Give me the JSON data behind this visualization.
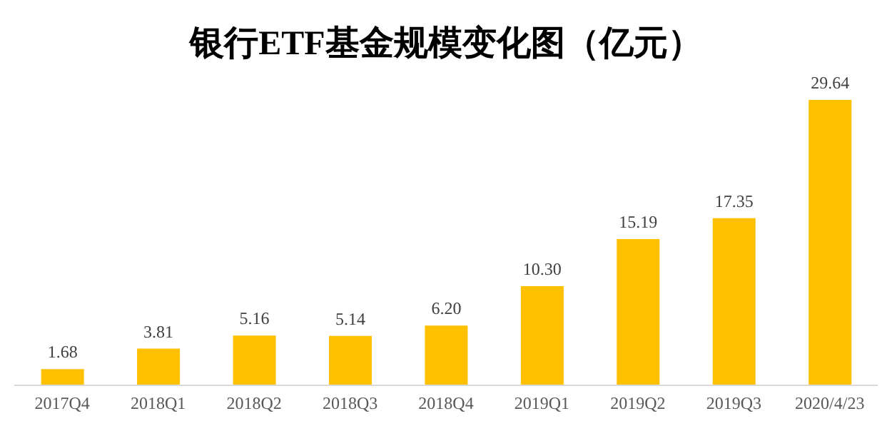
{
  "chart_data": {
    "type": "bar",
    "title": "银行ETF基金规模变化图（亿元）",
    "categories": [
      "2017Q4",
      "2018Q1",
      "2018Q2",
      "2018Q3",
      "2018Q4",
      "2019Q1",
      "2019Q2",
      "2019Q3",
      "2020/4/23"
    ],
    "values": [
      1.68,
      3.81,
      5.16,
      5.14,
      6.2,
      10.3,
      15.19,
      17.35,
      29.64
    ],
    "value_labels": [
      "1.68",
      "3.81",
      "5.16",
      "5.14",
      "6.20",
      "10.30",
      "15.19",
      "17.35",
      "29.64"
    ],
    "color": "#ffc000",
    "grid": false,
    "legend": false
  }
}
